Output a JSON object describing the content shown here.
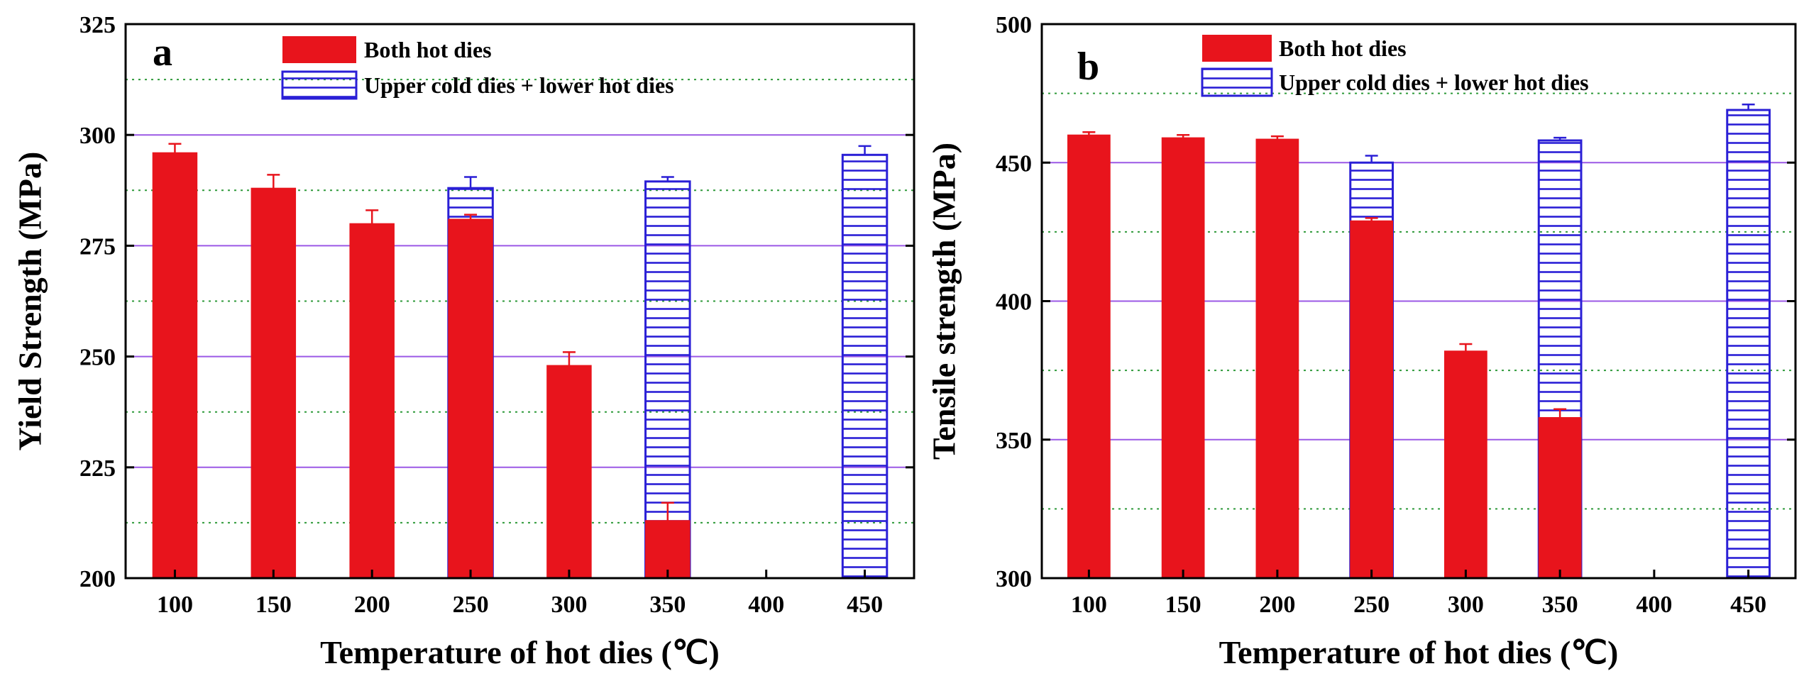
{
  "chart_data": [
    {
      "type": "bar",
      "panel_label": "a",
      "categories": [
        "100",
        "150",
        "200",
        "250",
        "300",
        "350",
        "400",
        "450"
      ],
      "xlabel": "Temperature of hot dies (℃)",
      "ylabel": "Yield Strength (MPa)",
      "ylim": [
        200,
        325
      ],
      "yticks": [
        200,
        225,
        250,
        275,
        300,
        325
      ],
      "legend_position": "top-center",
      "series": [
        {
          "name": "Both hot dies",
          "style": "solid",
          "color": "#e8141c",
          "values": [
            296,
            288,
            280,
            281,
            248,
            213,
            null,
            null
          ],
          "errors": [
            2,
            3,
            3,
            1,
            3,
            4,
            null,
            null
          ]
        },
        {
          "name": "Upper cold dies + lower hot dies",
          "style": "hatched",
          "color": "#2a1fd6",
          "values": [
            null,
            null,
            null,
            288,
            null,
            289.5,
            null,
            295.5
          ],
          "errors": [
            null,
            null,
            null,
            2.5,
            null,
            1,
            null,
            2
          ]
        }
      ]
    },
    {
      "type": "bar",
      "panel_label": "b",
      "categories": [
        "100",
        "150",
        "200",
        "250",
        "300",
        "350",
        "400",
        "450"
      ],
      "xlabel": "Temperature of hot dies (℃)",
      "ylabel": "Tensile strength (MPa)",
      "ylim": [
        300,
        500
      ],
      "yticks": [
        300,
        350,
        400,
        450,
        500
      ],
      "legend_position": "top-center",
      "series": [
        {
          "name": "Both hot dies",
          "style": "solid",
          "color": "#e8141c",
          "values": [
            460,
            459,
            458.5,
            429,
            382,
            358,
            null,
            null
          ],
          "errors": [
            1,
            1,
            1,
            1,
            2.5,
            3,
            null,
            null
          ]
        },
        {
          "name": "Upper cold dies + lower hot dies",
          "style": "hatched",
          "color": "#2a1fd6",
          "values": [
            null,
            null,
            null,
            450,
            null,
            458,
            null,
            469
          ],
          "errors": [
            null,
            null,
            null,
            2.5,
            null,
            1,
            null,
            2
          ]
        }
      ]
    }
  ]
}
